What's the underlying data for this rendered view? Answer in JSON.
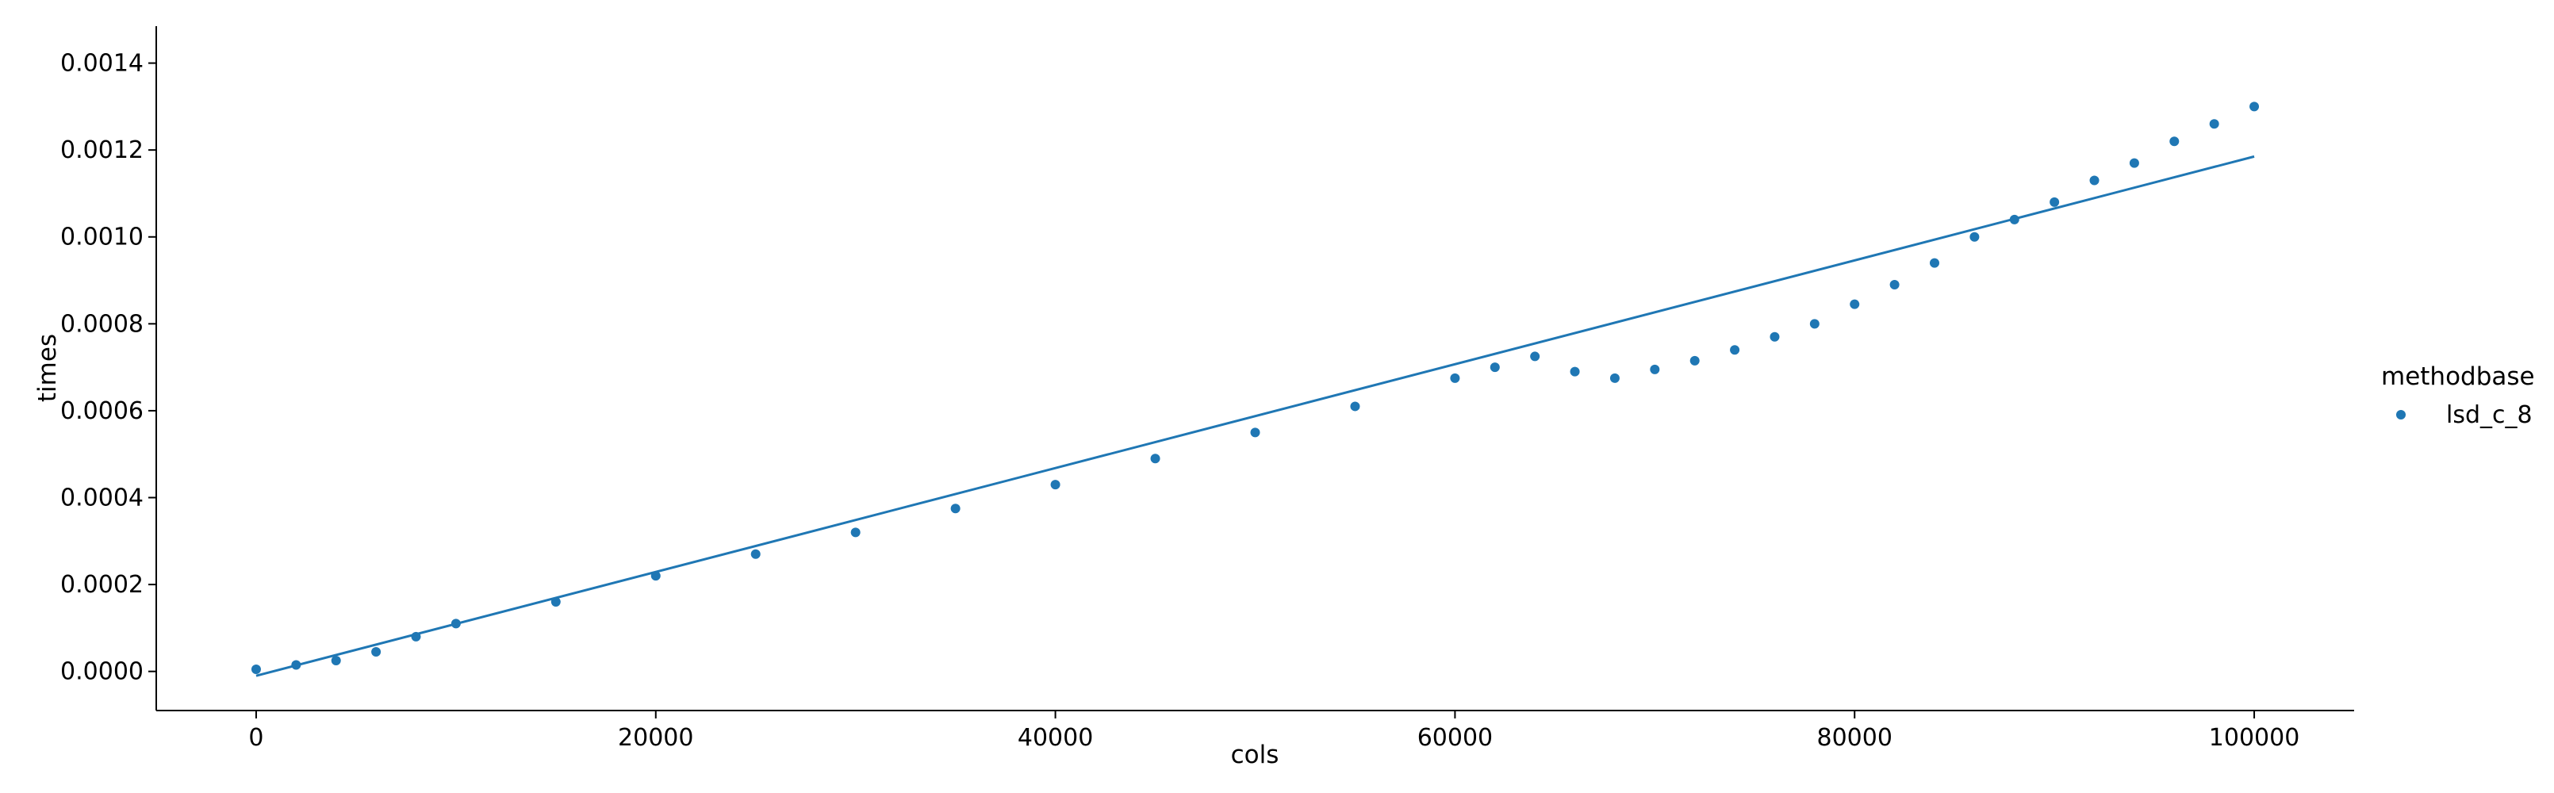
{
  "chart_data": {
    "type": "scatter",
    "title": "",
    "xlabel": "cols",
    "ylabel": "times",
    "xlim": [
      -5000,
      105000
    ],
    "ylim": [
      -9e-05,
      0.001485
    ],
    "xticks": [
      0,
      20000,
      40000,
      60000,
      80000,
      100000
    ],
    "xtick_labels": [
      "0",
      "20000",
      "40000",
      "60000",
      "80000",
      "100000"
    ],
    "yticks": [
      0,
      0.0002,
      0.0004,
      0.0006,
      0.0008,
      0.001,
      0.0012,
      0.0014
    ],
    "ytick_labels": [
      "0.0000",
      "0.0002",
      "0.0004",
      "0.0006",
      "0.0008",
      "0.0010",
      "0.0012",
      "0.0014"
    ],
    "grid": false,
    "legend": {
      "title": "methodbase",
      "placement": "right",
      "entries": [
        "lsd_c_8"
      ]
    },
    "series_color": "#1f77b4",
    "series": [
      {
        "name": "lsd_c_8",
        "x": [
          0,
          2000,
          4000,
          6000,
          8000,
          10000,
          15000,
          20000,
          25000,
          30000,
          35000,
          40000,
          45000,
          50000,
          55000,
          60000,
          62000,
          64000,
          66000,
          68000,
          70000,
          72000,
          74000,
          76000,
          78000,
          80000,
          82000,
          84000,
          86000,
          88000,
          90000,
          92000,
          94000,
          96000,
          98000,
          100000
        ],
        "y": [
          5e-06,
          1.5e-05,
          2.5e-05,
          4.5e-05,
          8e-05,
          0.00011,
          0.00016,
          0.00022,
          0.00027,
          0.00032,
          0.000375,
          0.00043,
          0.00049,
          0.00055,
          0.00061,
          0.000675,
          0.0007,
          0.000725,
          0.00069,
          0.000675,
          0.000695,
          0.000715,
          0.00074,
          0.00077,
          0.0008,
          0.000845,
          0.00089,
          0.00094,
          0.001,
          0.00104,
          0.00108,
          0.00113,
          0.00117,
          0.00122,
          0.00126,
          0.0013
        ]
      }
    ],
    "fit_line": {
      "x": [
        0,
        100000
      ],
      "y": [
        -1e-05,
        0.001185
      ]
    }
  }
}
